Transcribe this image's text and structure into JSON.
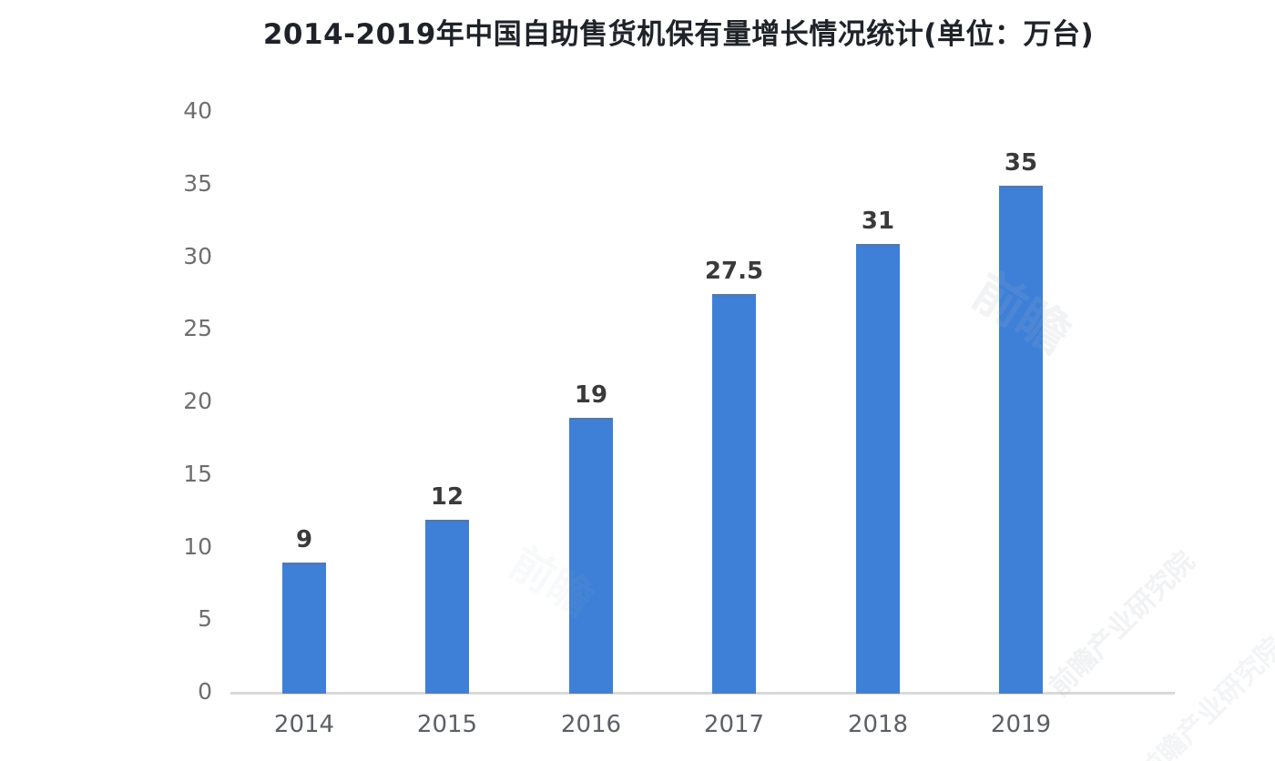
{
  "chart_data": {
    "type": "bar",
    "title": "2014-2019年中国自助售货机保有量增长情况统计(单位：万台)",
    "categories": [
      "2014",
      "2015",
      "2016",
      "2017",
      "2018",
      "2019"
    ],
    "values": [
      9,
      12,
      19,
      27.5,
      31,
      35
    ],
    "value_labels": [
      "9",
      "12",
      "19",
      "27.5",
      "31",
      "35"
    ],
    "xlabel": "",
    "ylabel": "",
    "ylim": [
      0,
      40
    ],
    "ytick_interval": 5,
    "yticks": [
      40,
      35,
      30,
      25,
      20,
      15,
      10,
      5,
      0
    ],
    "grid": "off",
    "legend": "none",
    "bar_color": "#3e80d8",
    "axis_line_color": "#d9d9d9",
    "title_color": "#1f2329",
    "tick_label_color": "#6e6e6e",
    "data_label_color": "#3a3a3a"
  },
  "watermark": {
    "short": "前瞻",
    "long": "前瞻产业研究院"
  }
}
